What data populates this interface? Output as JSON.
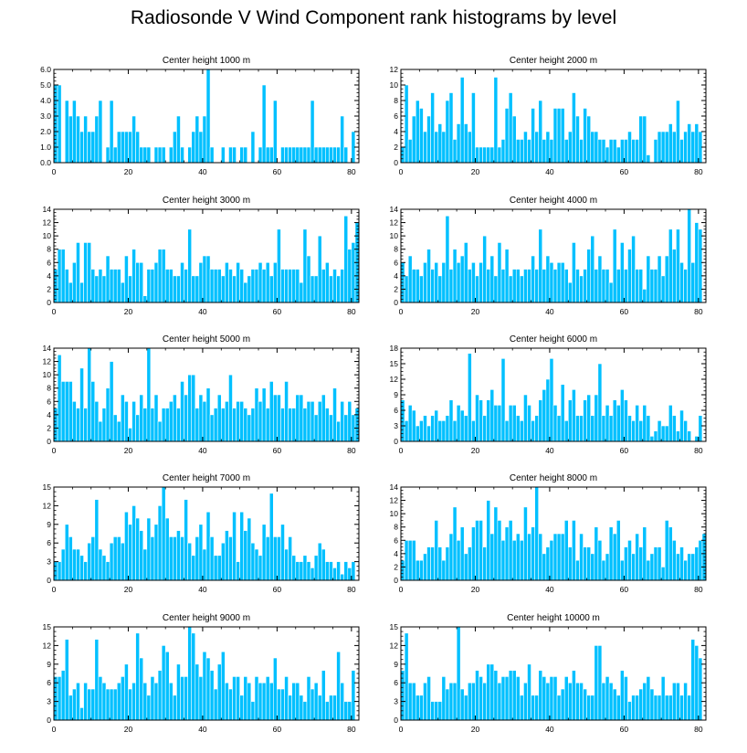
{
  "title": "Radiosonde V Wind Component rank histograms by level",
  "bar_color": "#00c0ff",
  "chart_data": [
    {
      "type": "bar",
      "title": "Center height 1000 m",
      "xlim": [
        0,
        82
      ],
      "ylim": [
        0,
        6
      ],
      "yticks": [
        0,
        1,
        2,
        3,
        4,
        5,
        6
      ],
      "ytick_labels": [
        "0.0",
        "1.0",
        "2.0",
        "3.0",
        "4.0",
        "5.0",
        "6.0"
      ],
      "xticks": [
        0,
        20,
        40,
        60,
        80
      ],
      "values": [
        5,
        5,
        0,
        4,
        3,
        4,
        3,
        2,
        3,
        2,
        2,
        3,
        4,
        0,
        1,
        4,
        1,
        2,
        2,
        2,
        2,
        3,
        2,
        1,
        1,
        1,
        0,
        1,
        1,
        1,
        0,
        1,
        2,
        3,
        1,
        0,
        1,
        2,
        3,
        2,
        3,
        6,
        1,
        0,
        0,
        1,
        0,
        1,
        1,
        0,
        1,
        1,
        0,
        2,
        0,
        1,
        5,
        1,
        1,
        4,
        0,
        1,
        1,
        1,
        1,
        1,
        1,
        1,
        1,
        4,
        1,
        1,
        1,
        1,
        1,
        1,
        1,
        3,
        1,
        0,
        2
      ]
    },
    {
      "type": "bar",
      "title": "Center height 2000 m",
      "xlim": [
        0,
        82
      ],
      "ylim": [
        0,
        12
      ],
      "yticks": [
        0,
        2,
        4,
        6,
        8,
        10,
        12
      ],
      "ytick_labels": [
        "0",
        "2",
        "4",
        "6",
        "8",
        "10",
        "12"
      ],
      "xticks": [
        0,
        20,
        40,
        60,
        80
      ],
      "values": [
        2,
        10,
        3,
        6,
        8,
        7,
        4,
        6,
        9,
        4,
        5,
        4,
        8,
        9,
        3,
        5,
        11,
        5,
        4,
        9,
        2,
        2,
        2,
        2,
        2,
        11,
        2,
        3,
        7,
        9,
        6,
        3,
        3,
        4,
        3,
        7,
        4,
        8,
        3,
        4,
        3,
        7,
        7,
        7,
        3,
        4,
        9,
        6,
        3,
        7,
        6,
        4,
        4,
        3,
        3,
        2,
        3,
        3,
        2,
        3,
        3,
        4,
        3,
        3,
        6,
        6,
        1,
        0,
        3,
        4,
        4,
        4,
        5,
        4,
        8,
        3,
        4,
        5,
        4,
        5,
        4
      ]
    },
    {
      "type": "bar",
      "title": "Center height 3000 m",
      "xlim": [
        0,
        82
      ],
      "ylim": [
        0,
        14
      ],
      "yticks": [
        0,
        2,
        4,
        6,
        8,
        10,
        12,
        14
      ],
      "ytick_labels": [
        "0",
        "2",
        "4",
        "6",
        "8",
        "10",
        "12",
        "14"
      ],
      "xticks": [
        0,
        20,
        40,
        60,
        80
      ],
      "values": [
        5,
        8,
        8,
        5,
        3,
        6,
        9,
        3,
        9,
        9,
        5,
        4,
        5,
        4,
        7,
        5,
        5,
        5,
        3,
        7,
        4,
        8,
        6,
        6,
        1,
        5,
        5,
        6,
        8,
        8,
        5,
        5,
        4,
        4,
        6,
        5,
        11,
        4,
        4,
        6,
        7,
        7,
        5,
        5,
        5,
        4,
        6,
        5,
        4,
        6,
        5,
        3,
        4,
        5,
        5,
        6,
        5,
        6,
        4,
        6,
        11,
        5,
        5,
        5,
        5,
        5,
        3,
        11,
        7,
        4,
        4,
        10,
        5,
        6,
        4,
        5,
        4,
        5,
        13,
        8,
        9,
        12
      ]
    },
    {
      "type": "bar",
      "title": "Center height 4000 m",
      "xlim": [
        0,
        82
      ],
      "ylim": [
        0,
        14
      ],
      "yticks": [
        0,
        2,
        4,
        6,
        8,
        10,
        12,
        14
      ],
      "ytick_labels": [
        "0",
        "2",
        "4",
        "6",
        "8",
        "10",
        "12",
        "14"
      ],
      "xticks": [
        0,
        20,
        40,
        60,
        80
      ],
      "values": [
        6,
        4,
        7,
        5,
        5,
        4,
        6,
        8,
        5,
        6,
        4,
        6,
        13,
        5,
        8,
        6,
        7,
        9,
        5,
        6,
        4,
        6,
        10,
        5,
        7,
        4,
        9,
        5,
        8,
        4,
        5,
        5,
        4,
        5,
        5,
        7,
        5,
        11,
        5,
        7,
        6,
        5,
        6,
        6,
        5,
        3,
        9,
        5,
        4,
        5,
        8,
        10,
        5,
        7,
        5,
        5,
        3,
        11,
        5,
        9,
        5,
        8,
        10,
        5,
        5,
        2,
        7,
        5,
        5,
        7,
        4,
        7,
        11,
        8,
        11,
        6,
        5,
        14,
        6,
        12,
        11
      ]
    },
    {
      "type": "bar",
      "title": "Center height 5000 m",
      "xlim": [
        0,
        82
      ],
      "ylim": [
        0,
        14
      ],
      "yticks": [
        0,
        2,
        4,
        6,
        8,
        10,
        12,
        14
      ],
      "ytick_labels": [
        "0",
        "2",
        "4",
        "6",
        "8",
        "10",
        "12",
        "14"
      ],
      "xticks": [
        0,
        20,
        40,
        60,
        80
      ],
      "values": [
        5,
        13,
        9,
        9,
        9,
        6,
        5,
        11,
        5,
        14,
        9,
        6,
        3,
        5,
        8,
        12,
        4,
        3,
        7,
        6,
        2,
        6,
        4,
        7,
        5,
        14,
        5,
        7,
        3,
        5,
        5,
        6,
        7,
        5,
        9,
        7,
        10,
        10,
        5,
        7,
        6,
        8,
        4,
        5,
        7,
        5,
        6,
        10,
        5,
        6,
        6,
        5,
        4,
        5,
        8,
        6,
        8,
        5,
        9,
        7,
        7,
        5,
        9,
        5,
        5,
        7,
        7,
        5,
        6,
        6,
        4,
        6,
        7,
        5,
        4,
        8,
        3,
        6,
        4,
        6,
        4,
        5
      ]
    },
    {
      "type": "bar",
      "title": "Center height 6000 m",
      "xlim": [
        0,
        82
      ],
      "ylim": [
        0,
        18
      ],
      "yticks": [
        0,
        3,
        6,
        9,
        12,
        15,
        18
      ],
      "ytick_labels": [
        "0",
        "3",
        "6",
        "9",
        "12",
        "15",
        "18"
      ],
      "xticks": [
        0,
        20,
        40,
        60,
        80
      ],
      "values": [
        8,
        4,
        7,
        6,
        3,
        4,
        5,
        3,
        5,
        6,
        4,
        4,
        5,
        8,
        4,
        7,
        6,
        5,
        17,
        4,
        9,
        8,
        5,
        8,
        10,
        7,
        7,
        16,
        4,
        7,
        7,
        5,
        4,
        9,
        7,
        4,
        5,
        8,
        10,
        12,
        16,
        7,
        5,
        11,
        4,
        8,
        10,
        5,
        5,
        8,
        9,
        5,
        9,
        15,
        5,
        7,
        5,
        8,
        7,
        10,
        8,
        5,
        4,
        7,
        4,
        7,
        5,
        1,
        2,
        4,
        3,
        3,
        7,
        5,
        2,
        6,
        4,
        2,
        0,
        1,
        5
      ]
    },
    {
      "type": "bar",
      "title": "Center height 7000 m",
      "xlim": [
        0,
        82
      ],
      "ylim": [
        0,
        15
      ],
      "yticks": [
        0,
        3,
        6,
        9,
        12,
        15
      ],
      "ytick_labels": [
        "0",
        "3",
        "6",
        "9",
        "12",
        "15"
      ],
      "xticks": [
        0,
        20,
        40,
        60,
        80
      ],
      "values": [
        3,
        3,
        5,
        9,
        7,
        5,
        5,
        4,
        3,
        6,
        7,
        13,
        5,
        4,
        3,
        6,
        7,
        7,
        6,
        11,
        9,
        12,
        10,
        8,
        5,
        10,
        7,
        9,
        12,
        15,
        10,
        7,
        7,
        8,
        7,
        13,
        6,
        4,
        7,
        9,
        5,
        11,
        7,
        4,
        4,
        6,
        8,
        7,
        11,
        3,
        11,
        8,
        10,
        6,
        5,
        4,
        9,
        7,
        14,
        7,
        7,
        9,
        5,
        7,
        4,
        3,
        3,
        4,
        3,
        2,
        4,
        6,
        5,
        3,
        3,
        2,
        3,
        1,
        3,
        2,
        3
      ]
    },
    {
      "type": "bar",
      "title": "Center height 8000 m",
      "xlim": [
        0,
        82
      ],
      "ylim": [
        0,
        14
      ],
      "yticks": [
        0,
        2,
        4,
        6,
        8,
        10,
        12,
        14
      ],
      "ytick_labels": [
        "0",
        "2",
        "4",
        "6",
        "8",
        "10",
        "12",
        "14"
      ],
      "xticks": [
        0,
        20,
        40,
        60,
        80
      ],
      "values": [
        3,
        6,
        6,
        6,
        3,
        3,
        4,
        5,
        5,
        9,
        5,
        3,
        5,
        7,
        11,
        6,
        8,
        4,
        5,
        8,
        9,
        9,
        5,
        12,
        7,
        11,
        9,
        6,
        8,
        9,
        6,
        7,
        6,
        11,
        7,
        8,
        14,
        7,
        4,
        5,
        6,
        7,
        7,
        7,
        9,
        5,
        9,
        3,
        7,
        5,
        5,
        4,
        8,
        6,
        3,
        4,
        8,
        7,
        9,
        3,
        5,
        6,
        4,
        7,
        5,
        8,
        3,
        4,
        5,
        5,
        2,
        9,
        8,
        6,
        4,
        5,
        3,
        4,
        4,
        5,
        6,
        7
      ]
    },
    {
      "type": "bar",
      "title": "Center height 9000 m",
      "xlim": [
        0,
        82
      ],
      "ylim": [
        0,
        15
      ],
      "yticks": [
        0,
        3,
        6,
        9,
        12,
        15
      ],
      "ytick_labels": [
        "0",
        "3",
        "6",
        "9",
        "12",
        "15"
      ],
      "xticks": [
        0,
        20,
        40,
        60,
        80
      ],
      "values": [
        7,
        7,
        8,
        13,
        4,
        5,
        6,
        2,
        6,
        5,
        5,
        13,
        7,
        6,
        5,
        5,
        5,
        6,
        7,
        9,
        5,
        6,
        14,
        10,
        6,
        4,
        7,
        6,
        8,
        12,
        11,
        6,
        4,
        9,
        7,
        7,
        15,
        14,
        9,
        7,
        11,
        10,
        8,
        5,
        9,
        11,
        6,
        5,
        7,
        7,
        4,
        7,
        6,
        3,
        7,
        6,
        6,
        7,
        6,
        10,
        5,
        5,
        7,
        4,
        6,
        6,
        4,
        3,
        7,
        5,
        6,
        4,
        8,
        3,
        4,
        4,
        11,
        6,
        3,
        3,
        8
      ]
    },
    {
      "type": "bar",
      "title": "Center height 10000 m",
      "xlim": [
        0,
        82
      ],
      "ylim": [
        0,
        15
      ],
      "yticks": [
        0,
        3,
        6,
        9,
        12,
        15
      ],
      "ytick_labels": [
        "0",
        "3",
        "6",
        "9",
        "12",
        "15"
      ],
      "xticks": [
        0,
        20,
        40,
        60,
        80
      ],
      "values": [
        8,
        14,
        6,
        6,
        4,
        4,
        6,
        7,
        3,
        3,
        3,
        7,
        5,
        6,
        6,
        15,
        5,
        4,
        6,
        6,
        8,
        7,
        6,
        9,
        9,
        8,
        6,
        7,
        7,
        8,
        8,
        7,
        4,
        6,
        9,
        4,
        4,
        8,
        7,
        6,
        7,
        7,
        4,
        5,
        7,
        6,
        8,
        6,
        6,
        5,
        4,
        4,
        12,
        12,
        6,
        7,
        6,
        5,
        4,
        8,
        7,
        3,
        4,
        4,
        5,
        6,
        7,
        5,
        4,
        4,
        7,
        4,
        4,
        6,
        6,
        4,
        6,
        4,
        13,
        12,
        10
      ]
    }
  ]
}
